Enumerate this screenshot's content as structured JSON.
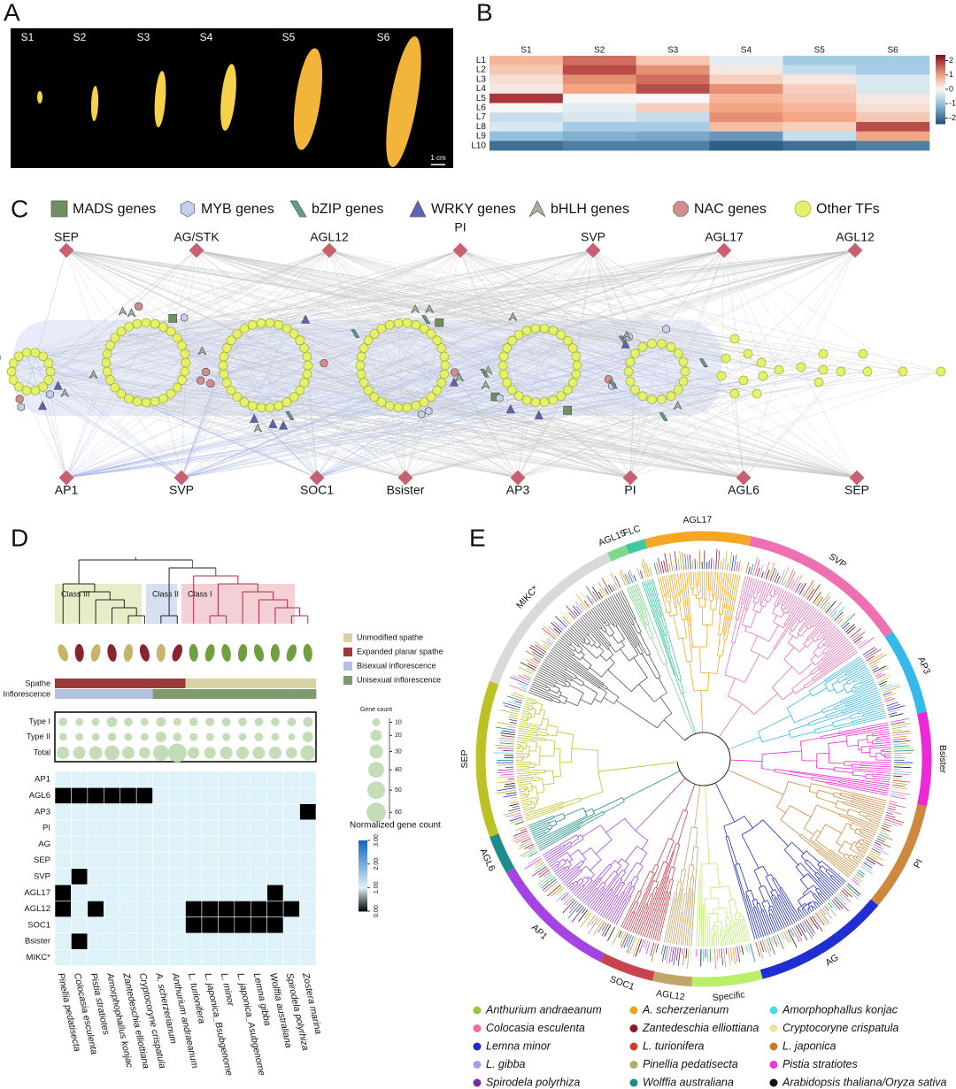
{
  "panel_letters": [
    "A",
    "B",
    "C",
    "D",
    "E"
  ],
  "panel_a": {
    "stages": [
      "S1",
      "S2",
      "S3",
      "S4",
      "S5",
      "S6"
    ],
    "scale_bar": "1 cm"
  },
  "chart_data": [
    {
      "type": "heatmap",
      "rows": [
        "L1",
        "L2",
        "L3",
        "L4",
        "L5",
        "L6",
        "L7",
        "L8",
        "L9",
        "L10"
      ],
      "columns": [
        "S1",
        "S2",
        "S3",
        "S4",
        "S5",
        "S6"
      ],
      "values": [
        [
          0.8,
          1.5,
          0.6,
          -0.2,
          -0.8,
          -0.8
        ],
        [
          0.6,
          1.8,
          1.2,
          0.2,
          -0.5,
          -0.8
        ],
        [
          0.3,
          1.2,
          1.5,
          0.5,
          0.2,
          -0.3
        ],
        [
          0.2,
          1.0,
          1.8,
          1.2,
          0.5,
          -0.3
        ],
        [
          2.0,
          0.0,
          0.0,
          0.8,
          0.6,
          0.2
        ],
        [
          0.0,
          -0.2,
          0.5,
          1.0,
          0.8,
          0.3
        ],
        [
          -0.5,
          -0.3,
          -0.5,
          1.2,
          1.0,
          0.6
        ],
        [
          -0.3,
          -0.8,
          -0.8,
          0.7,
          0.5,
          1.8
        ],
        [
          -1.0,
          -1.2,
          -1.3,
          -1.5,
          -0.5,
          1.0
        ],
        [
          -2.0,
          -1.8,
          -1.8,
          -2.2,
          -2.0,
          -1.8
        ]
      ],
      "clim": [
        -2.4,
        2.4
      ],
      "colorbar_ticks": [
        2,
        1,
        0,
        -1,
        -2
      ]
    },
    {
      "type": "bubble",
      "rows": [
        "Type I",
        "Type II",
        "Total"
      ],
      "values": [
        [
          12,
          10,
          10,
          18,
          12,
          10,
          15,
          10,
          12,
          12,
          12,
          12,
          12,
          12,
          12,
          15
        ],
        [
          10,
          10,
          10,
          12,
          10,
          10,
          18,
          12,
          10,
          10,
          10,
          10,
          12,
          10,
          8,
          18
        ],
        [
          25,
          25,
          28,
          35,
          25,
          20,
          40,
          55,
          22,
          22,
          25,
          25,
          25,
          25,
          20,
          35
        ]
      ],
      "color": "#c5dcb8",
      "size_title": "Gene count",
      "size_ticks": [
        10,
        20,
        30,
        40,
        50,
        60
      ]
    },
    {
      "type": "heatmap",
      "rows": [
        "AP1",
        "AGL6",
        "AP3",
        "PI",
        "AG",
        "SEP",
        "SVP",
        "AGL17",
        "AGL12",
        "SOC1",
        "Bsister",
        "MIKC*"
      ],
      "columns": [
        "Pinellia pedatisecta",
        "Colocasia esculenta",
        "Pistia stratiotes",
        "Amorphophallus konjac",
        "Zantedeschia elliottiana",
        "Cryptocoryne crispatula",
        "A. scherzerianum",
        "Anthurium andraeanum",
        "L. turionifera",
        "L. japonica_Bsubgenome",
        "L. minor",
        "L. japonica_Asubgenome",
        "Lemna gibba",
        "Wolffia australiana",
        "Spirodela polyrhiza",
        "Zostera marina"
      ],
      "values": [
        [
          1,
          1,
          1,
          1,
          1,
          1,
          1,
          1,
          1,
          1,
          1,
          1,
          1,
          1,
          1,
          1
        ],
        [
          0,
          0,
          0,
          0,
          0,
          0,
          1,
          1,
          1,
          1,
          1,
          1,
          1,
          1,
          1,
          1
        ],
        [
          1,
          1,
          1,
          1,
          1,
          1,
          1,
          1,
          1,
          1,
          1,
          1,
          1,
          1,
          1,
          0
        ],
        [
          1,
          1,
          1,
          1,
          1,
          1,
          1,
          1,
          1,
          1,
          1,
          1,
          1,
          1,
          1,
          1
        ],
        [
          1,
          1,
          1,
          1,
          1,
          1,
          1,
          1,
          1,
          1,
          1,
          1,
          1,
          1,
          1,
          1
        ],
        [
          1,
          1,
          1,
          1,
          1,
          1,
          1,
          1,
          1,
          1,
          1,
          1,
          1,
          1,
          1,
          1
        ],
        [
          1,
          0,
          1,
          1,
          1,
          1,
          1,
          1,
          1,
          1,
          1,
          1,
          1,
          1,
          1,
          1
        ],
        [
          0,
          1,
          1,
          1,
          1,
          1,
          1,
          1,
          1,
          1,
          1,
          1,
          1,
          0,
          1,
          1
        ],
        [
          0,
          1,
          0,
          1,
          1,
          1,
          1,
          1,
          0,
          0,
          0,
          0,
          0,
          0,
          0,
          1
        ],
        [
          1,
          1,
          1,
          1,
          1,
          1,
          1,
          1,
          0,
          0,
          0,
          0,
          0,
          0,
          1,
          1
        ],
        [
          1,
          0,
          1,
          1,
          1,
          1,
          1,
          1,
          1,
          1,
          1,
          1,
          1,
          1,
          1,
          1
        ],
        [
          1,
          1,
          1,
          1,
          1,
          1,
          1,
          1,
          1,
          1,
          1,
          1,
          1,
          1,
          1,
          1
        ]
      ],
      "clim": [
        0,
        3
      ],
      "colorbar_title": "Normalized gene count",
      "colorbar_ticks": [
        {
          "value": 3,
          "label": "3.00"
        },
        {
          "value": 2,
          "label": "2.00"
        },
        {
          "value": 1,
          "label": "1.00"
        },
        {
          "value": 0,
          "label": "0.00"
        }
      ]
    }
  ],
  "panel_c": {
    "legend": [
      {
        "name": "MADS genes",
        "color": "#6f8f5f"
      },
      {
        "name": "MYB genes",
        "color": "#c5d0ee"
      },
      {
        "name": "bZIP genes",
        "color": "#5f9c94"
      },
      {
        "name": "WRKY genes",
        "color": "#5b63b5"
      },
      {
        "name": "bHLH genes",
        "color": "#a7b596"
      },
      {
        "name": "NAC genes",
        "color": "#d48c8c"
      },
      {
        "name": "Other TFs",
        "color": "#e6f06a"
      }
    ],
    "top_nodes": [
      "SEP",
      "AG/STK",
      "AGL12",
      "PI",
      "SVP",
      "AGL17",
      "AGL12"
    ],
    "bottom_nodes": [
      "AP1",
      "SVP",
      "SOC1",
      "Bsister",
      "AP3",
      "PI",
      "AGL6",
      "SEP"
    ]
  },
  "panel_d": {
    "classes": [
      {
        "name": "Class III",
        "color": "#e6eec8"
      },
      {
        "name": "Class II",
        "color": "#d6e0f0"
      },
      {
        "name": "Class I",
        "color": "#f2d0d6"
      }
    ],
    "tracks": [
      "Spathe",
      "Inflorescence"
    ],
    "track_legend": [
      {
        "name": "Unmodified spathe",
        "color": "#d9d2a2"
      },
      {
        "name": "Expanded planar spathe",
        "color": "#9a3b3b"
      },
      {
        "name": "Bisexual inflorescence",
        "color": "#b8c0e2"
      },
      {
        "name": "Unisexual inflorescence",
        "color": "#7e9a6e"
      }
    ],
    "spathe": [
      1,
      1,
      1,
      1,
      1,
      1,
      1,
      1,
      0,
      0,
      0,
      0,
      0,
      0,
      0,
      0
    ],
    "inflorescence": [
      2,
      2,
      2,
      2,
      2,
      2,
      3,
      3,
      3,
      3,
      3,
      3,
      3,
      3,
      3,
      3
    ]
  },
  "panel_e": {
    "clades": [
      {
        "name": "MIKC*",
        "color": "#d9d9d9"
      },
      {
        "name": "AGL15",
        "color": "#7fd88a"
      },
      {
        "name": "FLC",
        "color": "#3fc9a0"
      },
      {
        "name": "AGL17",
        "color": "#f5a623"
      },
      {
        "name": "SVP",
        "color": "#ef6fb3"
      },
      {
        "name": "AP3",
        "color": "#37b8ea"
      },
      {
        "name": "Bsister",
        "color": "#ee28d6"
      },
      {
        "name": "PI",
        "color": "#cd8a3f"
      },
      {
        "name": "AG",
        "color": "#1f2fd1"
      },
      {
        "name": "Specific",
        "color": "#b9ef6a"
      },
      {
        "name": "AGL12",
        "color": "#c2a56a"
      },
      {
        "name": "SOC1",
        "color": "#c9434f"
      },
      {
        "name": "AP1",
        "color": "#a544e3"
      },
      {
        "name": "AGL6",
        "color": "#1f8c8a"
      },
      {
        "name": "SEP",
        "color": "#bdc224"
      }
    ],
    "legend": [
      {
        "name": "Anthurium andraeanum",
        "color": "#9bc53d"
      },
      {
        "name": "A. scherzerianum",
        "color": "#e8a317"
      },
      {
        "name": "Amorphophallus konjac",
        "color": "#4dd9e8"
      },
      {
        "name": "Colocasia esculenta",
        "color": "#ee6fa5"
      },
      {
        "name": "Zantedeschia elliottiana",
        "color": "#8b1a2b"
      },
      {
        "name": "Cryptocoryne crispatula",
        "color": "#eee39a"
      },
      {
        "name": "Lemna minor",
        "color": "#1f2ac9"
      },
      {
        "name": "L. turionifera",
        "color": "#d43a2b"
      },
      {
        "name": "L. japonica",
        "color": "#cc7a2a"
      },
      {
        "name": "L. gibba",
        "color": "#a89ce8"
      },
      {
        "name": "Pinellia pedatisecta",
        "color": "#b3ad6a"
      },
      {
        "name": "Pistia stratiotes",
        "color": "#ee37d6"
      },
      {
        "name": "Spirodela polyrhiza",
        "color": "#7b2b9c"
      },
      {
        "name": "Wolffia australiana",
        "color": "#1a8c8a"
      },
      {
        "name": "Arabidopsis thaliana/Oryza sativa",
        "color": "#111111"
      }
    ]
  }
}
